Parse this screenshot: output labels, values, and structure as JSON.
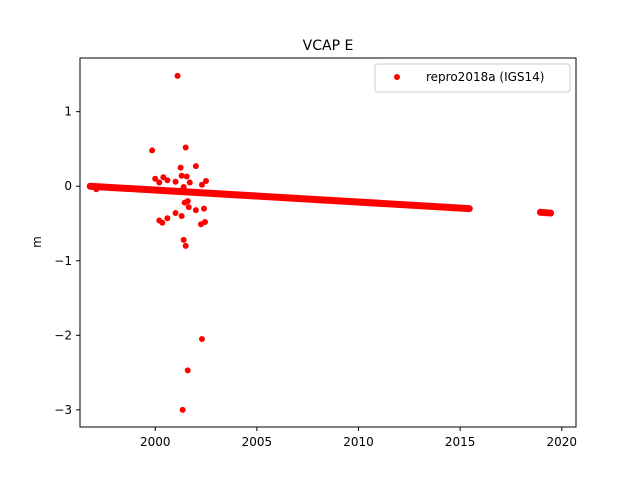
{
  "chart_data": {
    "type": "scatter",
    "title": "VCAP E",
    "xlabel": "",
    "ylabel": "m",
    "xlim": [
      1996.3,
      2020.7
    ],
    "ylim": [
      -3.23,
      1.72
    ],
    "xticks": [
      2000,
      2005,
      2010,
      2015,
      2020
    ],
    "yticks": [
      1,
      0,
      -1,
      -2,
      -3
    ],
    "xtick_labels": [
      "2000",
      "2005",
      "2010",
      "2015",
      "2020"
    ],
    "ytick_labels": [
      "1",
      "0",
      "−1",
      "−2",
      "−3"
    ],
    "grid": false,
    "legend": {
      "position": "top-right"
    },
    "series": [
      {
        "name": "repro2018a (IGS14)",
        "color": "#ff0000",
        "marker": "circle",
        "trend_segments": [
          {
            "x_start": 1996.8,
            "x_end": 2015.45,
            "y_start": 0.0,
            "y_end": -0.3
          },
          {
            "x_start": 2018.95,
            "x_end": 2019.45,
            "y_start": -0.35,
            "y_end": -0.36
          }
        ],
        "outliers": [
          [
            2001.1,
            1.48
          ],
          [
            1999.85,
            0.48
          ],
          [
            2001.5,
            0.52
          ],
          [
            2002.0,
            0.27
          ],
          [
            2001.25,
            0.25
          ],
          [
            2001.3,
            0.14
          ],
          [
            2001.55,
            0.13
          ],
          [
            2000.4,
            0.12
          ],
          [
            2000.0,
            0.1
          ],
          [
            2000.6,
            0.08
          ],
          [
            2002.5,
            0.07
          ],
          [
            2002.3,
            0.02
          ],
          [
            2001.0,
            0.06
          ],
          [
            2001.7,
            0.05
          ],
          [
            2000.2,
            0.05
          ],
          [
            2001.4,
            -0.01
          ],
          [
            2001.2,
            -0.06
          ],
          [
            2001.85,
            -0.08
          ],
          [
            2001.6,
            -0.2
          ],
          [
            2001.45,
            -0.22
          ],
          [
            2001.65,
            -0.28
          ],
          [
            2002.4,
            -0.3
          ],
          [
            2002.0,
            -0.32
          ],
          [
            2001.0,
            -0.36
          ],
          [
            2001.3,
            -0.4
          ],
          [
            2000.6,
            -0.43
          ],
          [
            2000.2,
            -0.46
          ],
          [
            2000.35,
            -0.49
          ],
          [
            2002.45,
            -0.48
          ],
          [
            2002.25,
            -0.51
          ],
          [
            1997.1,
            -0.04
          ],
          [
            2001.4,
            -0.72
          ],
          [
            2001.5,
            -0.8
          ],
          [
            2002.3,
            -2.05
          ],
          [
            2001.6,
            -2.47
          ],
          [
            2001.35,
            -3.0
          ]
        ]
      }
    ]
  }
}
